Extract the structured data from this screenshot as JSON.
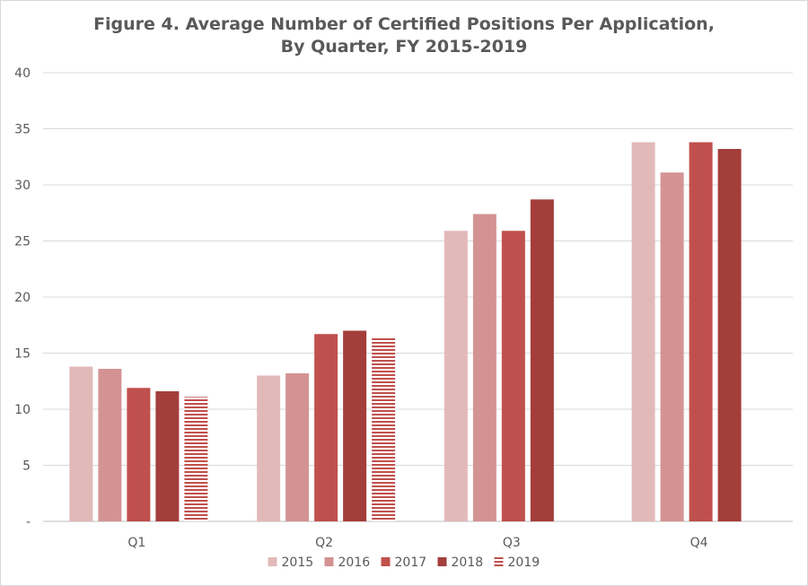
{
  "chart_data": {
    "type": "bar",
    "title": [
      "Figure 4. Average Number of Certified Positions Per Application,",
      "By Quarter, FY 2015-2019"
    ],
    "xlabel": "",
    "ylabel": "",
    "categories": [
      "Q1",
      "Q2",
      "Q3",
      "Q4"
    ],
    "ylim": [
      0,
      40
    ],
    "y_ticks": [
      {
        "value": 0,
        "label": "-"
      },
      {
        "value": 5,
        "label": "5"
      },
      {
        "value": 10,
        "label": "10"
      },
      {
        "value": 15,
        "label": "15"
      },
      {
        "value": 20,
        "label": "20"
      },
      {
        "value": 25,
        "label": "25"
      },
      {
        "value": 30,
        "label": "30"
      },
      {
        "value": 35,
        "label": "35"
      },
      {
        "value": 40,
        "label": "40"
      }
    ],
    "grid": true,
    "legend_position": "bottom",
    "series": [
      {
        "name": "2015",
        "color": "#e2b9b9",
        "pattern": "solid",
        "values": [
          13.8,
          13.0,
          25.9,
          33.8
        ]
      },
      {
        "name": "2016",
        "color": "#d49393",
        "pattern": "solid",
        "values": [
          13.6,
          13.2,
          27.4,
          31.1
        ]
      },
      {
        "name": "2017",
        "color": "#c0504d",
        "pattern": "solid",
        "values": [
          11.9,
          16.7,
          25.9,
          33.8
        ]
      },
      {
        "name": "2018",
        "color": "#a33e3b",
        "pattern": "solid",
        "values": [
          11.6,
          17.0,
          28.7,
          33.2
        ]
      },
      {
        "name": "2019",
        "color": "#c0504d",
        "pattern": "horizontal-stripes",
        "values": [
          11.1,
          16.4,
          null,
          null
        ]
      }
    ]
  }
}
